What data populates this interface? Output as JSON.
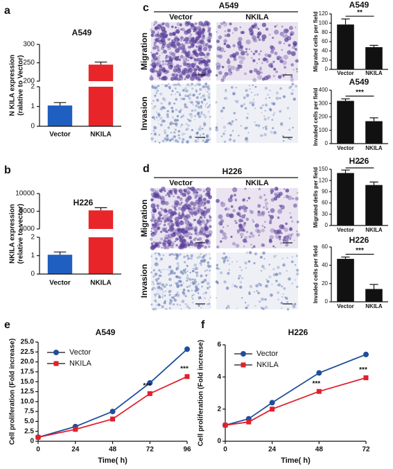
{
  "chart_data": [
    {
      "type": "broken_bar",
      "panel": "a",
      "title": "A549",
      "ylabel": [
        "N KILA expression",
        "(ralative to Vector)"
      ],
      "categories": [
        "Vector",
        "NKILA"
      ],
      "values": [
        1.05,
        245
      ],
      "errors": [
        0.15,
        7
      ],
      "colors": [
        "#1f5fbf",
        "#e8262a"
      ],
      "segments": [
        {
          "ylim": [
            0,
            2
          ],
          "yticks": [
            0,
            1,
            2
          ]
        },
        {
          "ylim": [
            200,
            300
          ],
          "yticks": [
            200,
            250,
            300
          ]
        }
      ]
    },
    {
      "type": "broken_bar",
      "panel": "b",
      "title": "H226",
      "ylabel": [
        "NKILA expression",
        "(relative to vector)"
      ],
      "categories": [
        "Vector",
        "NKILA"
      ],
      "values": [
        1.05,
        9050
      ],
      "errors": [
        0.15,
        150
      ],
      "colors": [
        "#1f5fbf",
        "#e8262a"
      ],
      "segments": [
        {
          "ylim": [
            0,
            2
          ],
          "yticks": [
            0,
            1,
            2
          ]
        },
        {
          "ylim": [
            8000,
            10000
          ],
          "yticks": [
            8000,
            9000,
            10000
          ]
        }
      ]
    },
    {
      "type": "micrograph",
      "panel": "c",
      "title": "A549",
      "columns": [
        "Vector",
        "NKILA"
      ],
      "rows": [
        "Migration",
        "Invasion"
      ]
    },
    {
      "type": "bar",
      "title": "A549",
      "ylabel": "Migrated cells per field",
      "categories": [
        "Vector",
        "NKILA"
      ],
      "values": [
        97,
        48
      ],
      "errors": [
        12,
        4
      ],
      "color": "#111111",
      "significance": "**",
      "ylim": [
        0,
        120
      ],
      "yticks": [
        0,
        20,
        40,
        60,
        80,
        100,
        120
      ]
    },
    {
      "type": "bar",
      "title": "A549",
      "ylabel": "Invaded cells per field",
      "categories": [
        "Vector",
        "NKILA"
      ],
      "values": [
        320,
        168
      ],
      "errors": [
        15,
        25
      ],
      "color": "#111111",
      "significance": "***",
      "ylim": [
        0,
        400
      ],
      "yticks": [
        0,
        100,
        200,
        300,
        400
      ]
    },
    {
      "type": "micrograph",
      "panel": "d",
      "title": "H226",
      "columns": [
        "Vector",
        "NKILA"
      ],
      "rows": [
        "Migration",
        "Invasion"
      ]
    },
    {
      "type": "bar",
      "title": "H226",
      "ylabel": "Migrated dells per field",
      "categories": [
        "Vector",
        "NKILA"
      ],
      "values": [
        140,
        108
      ],
      "errors": [
        8,
        8
      ],
      "color": "#111111",
      "significance": "*",
      "ylim": [
        0,
        150
      ],
      "yticks": [
        0,
        30,
        60,
        90,
        120,
        150
      ]
    },
    {
      "type": "bar",
      "title": "H226",
      "ylabel": "Invaded cells per field",
      "categories": [
        "Vector",
        "NKILA"
      ],
      "values": [
        47,
        14
      ],
      "errors": [
        2,
        5
      ],
      "color": "#111111",
      "significance": "***",
      "ylim": [
        0,
        60
      ],
      "yticks": [
        0,
        20,
        40,
        60
      ]
    },
    {
      "type": "line",
      "panel": "e",
      "title": "A549",
      "xlabel": "Time( h)",
      "ylabel": "Cell proliferation (Fold increase)",
      "x": [
        0,
        24,
        48,
        72,
        96
      ],
      "series": [
        {
          "name": "Vector",
          "color": "#1f4e9c",
          "marker": "circle",
          "values": [
            1,
            3.7,
            7.5,
            14.7,
            23.2
          ]
        },
        {
          "name": "NKILA",
          "color": "#e0202a",
          "marker": "square",
          "values": [
            1,
            3.0,
            5.6,
            12,
            16.3
          ]
        }
      ],
      "annotations": [
        {
          "text": "***",
          "x": 72
        },
        {
          "text": "***",
          "x": 96
        }
      ],
      "xlim": [
        0,
        96
      ],
      "xticks": [
        0,
        24,
        48,
        72,
        96
      ],
      "ylim": [
        0,
        25
      ],
      "yticks": [
        0,
        2.5,
        {
          "value": 5,
          "label": "5.0"
        },
        7.5,
        {
          "value": 10,
          "label": "10.0"
        },
        12.5,
        {
          "value": 15,
          "label": "15.0"
        },
        17.5,
        {
          "value": 20,
          "label": "20.0"
        },
        22.5,
        {
          "value": 25,
          "label": "25.0"
        }
      ]
    },
    {
      "type": "line",
      "panel": "f",
      "title": "H226",
      "xlabel": "Time( h)",
      "ylabel": "Cell proliferation (Fold increase)",
      "x": [
        0,
        12,
        24,
        48,
        72
      ],
      "series": [
        {
          "name": "Vector",
          "color": "#1f4e9c",
          "marker": "circle",
          "values": [
            1,
            1.4,
            2.4,
            4.25,
            5.4
          ]
        },
        {
          "name": "NKILA",
          "color": "#e0202a",
          "marker": "square",
          "values": [
            1,
            1.2,
            2.0,
            3.1,
            3.95
          ]
        }
      ],
      "annotations": [
        {
          "text": "***",
          "x": 48
        },
        {
          "text": "***",
          "x": 72
        }
      ],
      "xlim": [
        0,
        72
      ],
      "xticks": [
        0,
        24,
        48,
        72
      ],
      "ylim": [
        0,
        6
      ],
      "yticks": [
        0,
        2,
        4,
        6
      ]
    }
  ]
}
